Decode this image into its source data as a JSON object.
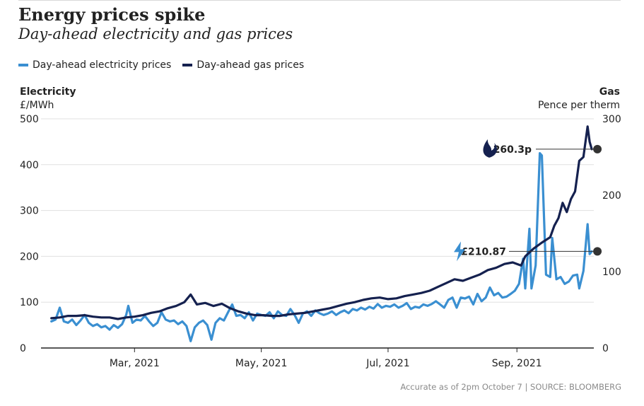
{
  "title": "Energy prices spike",
  "subtitle": "Day-ahead electricity and gas prices",
  "source": "Accurate as of 2pm October 7 | SOURCE: BLOOMBERG",
  "colors": {
    "electricity": "#3a8fd1",
    "gas": "#15214f",
    "grid": "#e0e0e0",
    "axis": "#222222",
    "marker": "#333333"
  },
  "chart_data": {
    "type": "line",
    "x_unit": "date",
    "x_tick_labels": [
      "Mar, 2021",
      "May, 2021",
      "Jul, 2021",
      "Sep, 2021"
    ],
    "x_ticks": [
      "2021-03-01",
      "2021-05-01",
      "2021-07-01",
      "2021-09-01"
    ],
    "xlim": [
      "2021-01-15",
      "2021-10-08"
    ],
    "left_axis": {
      "title": "Electricity",
      "unit": "£/MWh",
      "ylim": [
        0,
        500
      ],
      "ticks": [
        0,
        100,
        200,
        300,
        400,
        500
      ]
    },
    "right_axis": {
      "title": "Gas",
      "unit": "Pence per therm",
      "ylim": [
        0,
        300
      ],
      "ticks": [
        0,
        100,
        200,
        300
      ]
    },
    "grid": true,
    "legend_position": "top-left",
    "series": [
      {
        "name": "Day-ahead electricity prices",
        "axis": "left",
        "points": [
          [
            "2021-01-20",
            58
          ],
          [
            "2021-01-22",
            62
          ],
          [
            "2021-01-24",
            88
          ],
          [
            "2021-01-26",
            58
          ],
          [
            "2021-01-28",
            55
          ],
          [
            "2021-01-30",
            62
          ],
          [
            "2021-02-01",
            50
          ],
          [
            "2021-02-03",
            60
          ],
          [
            "2021-02-05",
            72
          ],
          [
            "2021-02-07",
            55
          ],
          [
            "2021-02-09",
            48
          ],
          [
            "2021-02-11",
            52
          ],
          [
            "2021-02-13",
            45
          ],
          [
            "2021-02-15",
            48
          ],
          [
            "2021-02-17",
            40
          ],
          [
            "2021-02-19",
            50
          ],
          [
            "2021-02-21",
            44
          ],
          [
            "2021-02-23",
            52
          ],
          [
            "2021-02-25",
            72
          ],
          [
            "2021-02-26",
            92
          ],
          [
            "2021-02-28",
            55
          ],
          [
            "2021-03-02",
            62
          ],
          [
            "2021-03-04",
            60
          ],
          [
            "2021-03-06",
            70
          ],
          [
            "2021-03-08",
            58
          ],
          [
            "2021-03-10",
            48
          ],
          [
            "2021-03-12",
            55
          ],
          [
            "2021-03-14",
            78
          ],
          [
            "2021-03-16",
            62
          ],
          [
            "2021-03-18",
            58
          ],
          [
            "2021-03-20",
            60
          ],
          [
            "2021-03-22",
            52
          ],
          [
            "2021-03-24",
            58
          ],
          [
            "2021-03-26",
            48
          ],
          [
            "2021-03-28",
            15
          ],
          [
            "2021-03-30",
            45
          ],
          [
            "2021-04-01",
            55
          ],
          [
            "2021-04-03",
            60
          ],
          [
            "2021-04-05",
            50
          ],
          [
            "2021-04-07",
            18
          ],
          [
            "2021-04-09",
            55
          ],
          [
            "2021-04-11",
            65
          ],
          [
            "2021-04-13",
            60
          ],
          [
            "2021-04-15",
            78
          ],
          [
            "2021-04-17",
            95
          ],
          [
            "2021-04-19",
            70
          ],
          [
            "2021-04-21",
            72
          ],
          [
            "2021-04-23",
            65
          ],
          [
            "2021-04-25",
            78
          ],
          [
            "2021-04-27",
            60
          ],
          [
            "2021-04-29",
            75
          ],
          [
            "2021-05-01",
            72
          ],
          [
            "2021-05-03",
            70
          ],
          [
            "2021-05-05",
            78
          ],
          [
            "2021-05-07",
            65
          ],
          [
            "2021-05-09",
            80
          ],
          [
            "2021-05-11",
            72
          ],
          [
            "2021-05-13",
            70
          ],
          [
            "2021-05-15",
            85
          ],
          [
            "2021-05-17",
            72
          ],
          [
            "2021-05-19",
            55
          ],
          [
            "2021-05-21",
            75
          ],
          [
            "2021-05-23",
            80
          ],
          [
            "2021-05-25",
            70
          ],
          [
            "2021-05-27",
            82
          ],
          [
            "2021-05-29",
            76
          ],
          [
            "2021-05-31",
            72
          ],
          [
            "2021-06-02",
            75
          ],
          [
            "2021-06-04",
            80
          ],
          [
            "2021-06-06",
            72
          ],
          [
            "2021-06-08",
            78
          ],
          [
            "2021-06-10",
            82
          ],
          [
            "2021-06-12",
            76
          ],
          [
            "2021-06-14",
            85
          ],
          [
            "2021-06-16",
            82
          ],
          [
            "2021-06-18",
            88
          ],
          [
            "2021-06-20",
            84
          ],
          [
            "2021-06-22",
            90
          ],
          [
            "2021-06-24",
            86
          ],
          [
            "2021-06-26",
            96
          ],
          [
            "2021-06-28",
            88
          ],
          [
            "2021-06-30",
            92
          ],
          [
            "2021-07-02",
            90
          ],
          [
            "2021-07-04",
            95
          ],
          [
            "2021-07-06",
            88
          ],
          [
            "2021-07-08",
            92
          ],
          [
            "2021-07-10",
            98
          ],
          [
            "2021-07-12",
            85
          ],
          [
            "2021-07-14",
            90
          ],
          [
            "2021-07-16",
            88
          ],
          [
            "2021-07-18",
            95
          ],
          [
            "2021-07-20",
            92
          ],
          [
            "2021-07-22",
            96
          ],
          [
            "2021-07-24",
            102
          ],
          [
            "2021-07-26",
            95
          ],
          [
            "2021-07-28",
            88
          ],
          [
            "2021-07-30",
            105
          ],
          [
            "2021-08-01",
            110
          ],
          [
            "2021-08-03",
            88
          ],
          [
            "2021-08-05",
            110
          ],
          [
            "2021-08-07",
            108
          ],
          [
            "2021-08-09",
            112
          ],
          [
            "2021-08-11",
            95
          ],
          [
            "2021-08-13",
            118
          ],
          [
            "2021-08-15",
            102
          ],
          [
            "2021-08-17",
            110
          ],
          [
            "2021-08-19",
            132
          ],
          [
            "2021-08-21",
            115
          ],
          [
            "2021-08-23",
            120
          ],
          [
            "2021-08-25",
            110
          ],
          [
            "2021-08-27",
            112
          ],
          [
            "2021-08-29",
            118
          ],
          [
            "2021-08-31",
            125
          ],
          [
            "2021-09-02",
            140
          ],
          [
            "2021-09-04",
            195
          ],
          [
            "2021-09-05",
            130
          ],
          [
            "2021-09-07",
            260
          ],
          [
            "2021-09-08",
            130
          ],
          [
            "2021-09-10",
            180
          ],
          [
            "2021-09-12",
            425
          ],
          [
            "2021-09-13",
            420
          ],
          [
            "2021-09-15",
            160
          ],
          [
            "2021-09-17",
            155
          ],
          [
            "2021-09-18",
            240
          ],
          [
            "2021-09-20",
            150
          ],
          [
            "2021-09-22",
            155
          ],
          [
            "2021-09-24",
            140
          ],
          [
            "2021-09-26",
            145
          ],
          [
            "2021-09-28",
            158
          ],
          [
            "2021-09-30",
            160
          ],
          [
            "2021-10-01",
            130
          ],
          [
            "2021-10-03",
            168
          ],
          [
            "2021-10-05",
            270
          ],
          [
            "2021-10-06",
            205
          ],
          [
            "2021-10-07",
            210.87
          ]
        ]
      },
      {
        "name": "Day-ahead gas prices",
        "axis": "right",
        "points": [
          [
            "2021-01-20",
            39
          ],
          [
            "2021-01-24",
            40
          ],
          [
            "2021-01-28",
            42
          ],
          [
            "2021-02-01",
            42
          ],
          [
            "2021-02-05",
            43
          ],
          [
            "2021-02-09",
            41
          ],
          [
            "2021-02-13",
            40
          ],
          [
            "2021-02-17",
            40
          ],
          [
            "2021-02-21",
            38
          ],
          [
            "2021-02-25",
            40
          ],
          [
            "2021-03-01",
            41
          ],
          [
            "2021-03-05",
            43
          ],
          [
            "2021-03-09",
            46
          ],
          [
            "2021-03-13",
            48
          ],
          [
            "2021-03-17",
            52
          ],
          [
            "2021-03-21",
            55
          ],
          [
            "2021-03-25",
            60
          ],
          [
            "2021-03-28",
            70
          ],
          [
            "2021-03-31",
            57
          ],
          [
            "2021-04-04",
            59
          ],
          [
            "2021-04-08",
            55
          ],
          [
            "2021-04-12",
            58
          ],
          [
            "2021-04-16",
            52
          ],
          [
            "2021-04-20",
            48
          ],
          [
            "2021-04-24",
            45
          ],
          [
            "2021-04-28",
            43
          ],
          [
            "2021-05-02",
            43
          ],
          [
            "2021-05-06",
            42
          ],
          [
            "2021-05-10",
            42
          ],
          [
            "2021-05-14",
            44
          ],
          [
            "2021-05-18",
            45
          ],
          [
            "2021-05-22",
            46
          ],
          [
            "2021-05-26",
            48
          ],
          [
            "2021-05-30",
            50
          ],
          [
            "2021-06-03",
            52
          ],
          [
            "2021-06-07",
            55
          ],
          [
            "2021-06-11",
            58
          ],
          [
            "2021-06-15",
            60
          ],
          [
            "2021-06-19",
            63
          ],
          [
            "2021-06-23",
            65
          ],
          [
            "2021-06-27",
            66
          ],
          [
            "2021-07-01",
            64
          ],
          [
            "2021-07-05",
            65
          ],
          [
            "2021-07-09",
            68
          ],
          [
            "2021-07-13",
            70
          ],
          [
            "2021-07-17",
            72
          ],
          [
            "2021-07-21",
            75
          ],
          [
            "2021-07-25",
            80
          ],
          [
            "2021-07-29",
            85
          ],
          [
            "2021-08-02",
            90
          ],
          [
            "2021-08-06",
            88
          ],
          [
            "2021-08-10",
            92
          ],
          [
            "2021-08-14",
            96
          ],
          [
            "2021-08-18",
            102
          ],
          [
            "2021-08-22",
            105
          ],
          [
            "2021-08-26",
            110
          ],
          [
            "2021-08-30",
            112
          ],
          [
            "2021-09-03",
            108
          ],
          [
            "2021-09-05",
            120
          ],
          [
            "2021-09-09",
            130
          ],
          [
            "2021-09-13",
            138
          ],
          [
            "2021-09-17",
            145
          ],
          [
            "2021-09-19",
            160
          ],
          [
            "2021-09-21",
            170
          ],
          [
            "2021-09-23",
            190
          ],
          [
            "2021-09-25",
            178
          ],
          [
            "2021-09-27",
            195
          ],
          [
            "2021-09-29",
            205
          ],
          [
            "2021-10-01",
            245
          ],
          [
            "2021-10-03",
            250
          ],
          [
            "2021-10-05",
            290
          ],
          [
            "2021-10-06",
            270
          ],
          [
            "2021-10-07",
            260.3
          ]
        ]
      }
    ],
    "annotations": [
      {
        "series": "Day-ahead gas prices",
        "label": "260.3p",
        "icon": "flame-icon",
        "value": 260.3,
        "axis": "right"
      },
      {
        "series": "Day-ahead electricity prices",
        "label": "£210.87",
        "icon": "lightning-icon",
        "value": 210.87,
        "axis": "left"
      }
    ]
  }
}
